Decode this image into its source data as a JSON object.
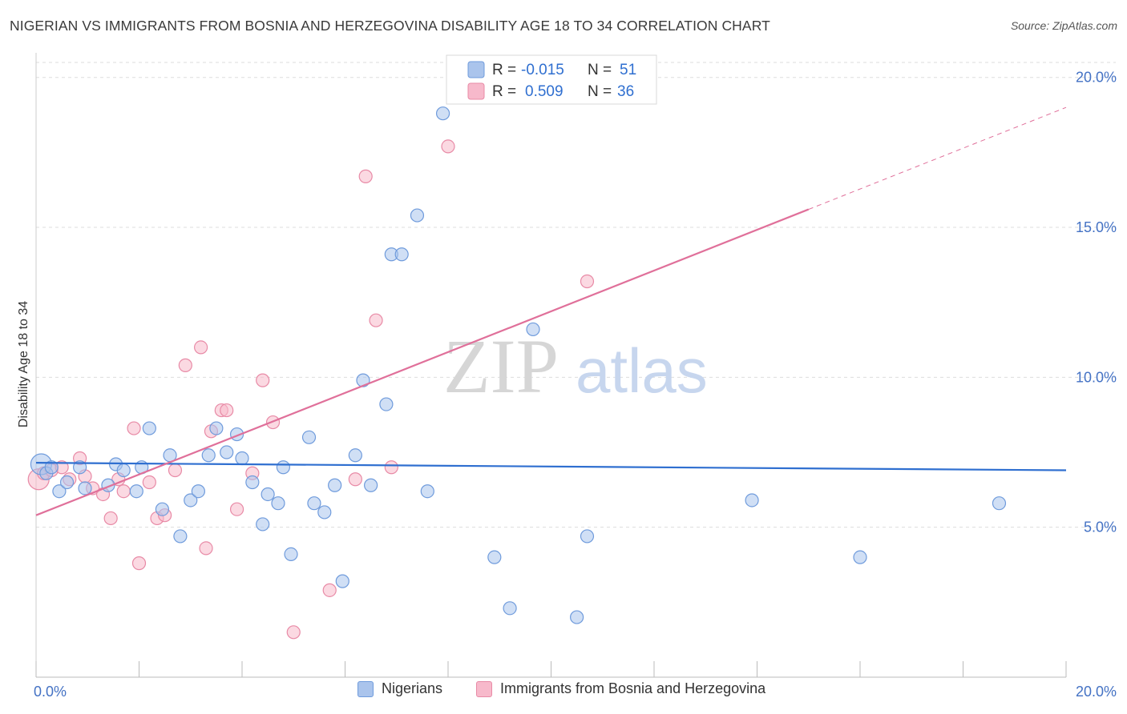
{
  "title": "NIGERIAN VS IMMIGRANTS FROM BOSNIA AND HERZEGOVINA DISABILITY AGE 18 TO 34 CORRELATION CHART",
  "source": "Source: ZipAtlas.com",
  "watermark": {
    "zip": "ZIP",
    "atlas": "atlas"
  },
  "colors": {
    "blue_fill": "#aac4ec",
    "blue_stroke": "#6f9bdc",
    "blue_line": "#2f6fd0",
    "pink_fill": "#f7b9cb",
    "pink_stroke": "#e88aa6",
    "pink_line": "#e0709a",
    "tick_text": "#4472c4",
    "grid": "#dddddd"
  },
  "stats_legend": {
    "r_label": "R =",
    "n_label": "N =",
    "rows": [
      {
        "r": "-0.015",
        "n": "51"
      },
      {
        "r": "0.509",
        "n": "36"
      }
    ]
  },
  "chart_data": {
    "type": "scatter",
    "title": "NIGERIAN VS IMMIGRANTS FROM BOSNIA AND HERZEGOVINA DISABILITY AGE 18 TO 34 CORRELATION CHART",
    "xlabel": "",
    "ylabel": "Disability Age 18 to 34",
    "xlim": [
      0,
      20
    ],
    "ylim": [
      0,
      20.5
    ],
    "x_tick_labels": [
      "0.0%",
      "20.0%"
    ],
    "y_ticks": [
      5,
      10,
      15,
      20
    ],
    "y_tick_labels": [
      "5.0%",
      "10.0%",
      "15.0%",
      "20.0%"
    ],
    "grid": true,
    "legend": [
      "Nigerians",
      "Immigrants from Bosnia and Herzegovina"
    ],
    "series": [
      {
        "name": "Nigerians",
        "trend": {
          "x": [
            0,
            20
          ],
          "y": [
            7.15,
            6.9
          ]
        },
        "points": [
          [
            0.1,
            7.1
          ],
          [
            0.2,
            6.8
          ],
          [
            0.3,
            7.0
          ],
          [
            0.45,
            6.2
          ],
          [
            0.6,
            6.5
          ],
          [
            0.85,
            7.0
          ],
          [
            0.95,
            6.3
          ],
          [
            1.4,
            6.4
          ],
          [
            1.55,
            7.1
          ],
          [
            1.7,
            6.9
          ],
          [
            1.95,
            6.2
          ],
          [
            2.05,
            7.0
          ],
          [
            2.2,
            8.3
          ],
          [
            2.45,
            5.6
          ],
          [
            2.6,
            7.4
          ],
          [
            2.8,
            4.7
          ],
          [
            3.0,
            5.9
          ],
          [
            3.15,
            6.2
          ],
          [
            3.35,
            7.4
          ],
          [
            3.5,
            8.3
          ],
          [
            3.7,
            7.5
          ],
          [
            3.9,
            8.1
          ],
          [
            4.0,
            7.3
          ],
          [
            4.2,
            6.5
          ],
          [
            4.4,
            5.1
          ],
          [
            4.5,
            6.1
          ],
          [
            4.7,
            5.8
          ],
          [
            4.8,
            7.0
          ],
          [
            4.95,
            4.1
          ],
          [
            5.3,
            8.0
          ],
          [
            5.4,
            5.8
          ],
          [
            5.6,
            5.5
          ],
          [
            5.8,
            6.4
          ],
          [
            5.95,
            3.2
          ],
          [
            6.2,
            7.4
          ],
          [
            6.35,
            9.9
          ],
          [
            6.5,
            6.4
          ],
          [
            6.8,
            9.1
          ],
          [
            6.9,
            14.1
          ],
          [
            7.1,
            14.1
          ],
          [
            7.4,
            15.4
          ],
          [
            7.6,
            6.2
          ],
          [
            7.9,
            18.8
          ],
          [
            8.9,
            4.0
          ],
          [
            9.2,
            2.3
          ],
          [
            9.65,
            11.6
          ],
          [
            10.5,
            2.0
          ],
          [
            10.7,
            4.7
          ],
          [
            13.9,
            5.9
          ],
          [
            16.0,
            4.0
          ],
          [
            18.7,
            5.8
          ]
        ]
      },
      {
        "name": "Immigrants from Bosnia and Herzegovina",
        "trend": {
          "x": [
            0,
            15
          ],
          "y": [
            5.4,
            15.6
          ]
        },
        "trend_dashed": {
          "x": [
            15,
            20
          ],
          "y": [
            15.6,
            19.0
          ]
        },
        "points": [
          [
            0.05,
            6.6
          ],
          [
            0.15,
            6.8
          ],
          [
            0.3,
            6.9
          ],
          [
            0.5,
            7.0
          ],
          [
            0.65,
            6.6
          ],
          [
            0.85,
            7.3
          ],
          [
            0.95,
            6.7
          ],
          [
            1.1,
            6.3
          ],
          [
            1.3,
            6.1
          ],
          [
            1.45,
            5.3
          ],
          [
            1.6,
            6.6
          ],
          [
            1.7,
            6.2
          ],
          [
            1.9,
            8.3
          ],
          [
            2.0,
            3.8
          ],
          [
            2.2,
            6.5
          ],
          [
            2.35,
            5.3
          ],
          [
            2.5,
            5.4
          ],
          [
            2.7,
            6.9
          ],
          [
            2.9,
            10.4
          ],
          [
            3.2,
            11.0
          ],
          [
            3.3,
            4.3
          ],
          [
            3.4,
            8.2
          ],
          [
            3.6,
            8.9
          ],
          [
            3.7,
            8.9
          ],
          [
            3.9,
            5.6
          ],
          [
            4.2,
            6.8
          ],
          [
            4.4,
            9.9
          ],
          [
            4.6,
            8.5
          ],
          [
            5.0,
            1.5
          ],
          [
            5.7,
            2.9
          ],
          [
            6.2,
            6.6
          ],
          [
            6.4,
            16.7
          ],
          [
            6.6,
            11.9
          ],
          [
            6.9,
            7.0
          ],
          [
            8.0,
            17.7
          ],
          [
            10.7,
            13.2
          ]
        ]
      }
    ]
  }
}
